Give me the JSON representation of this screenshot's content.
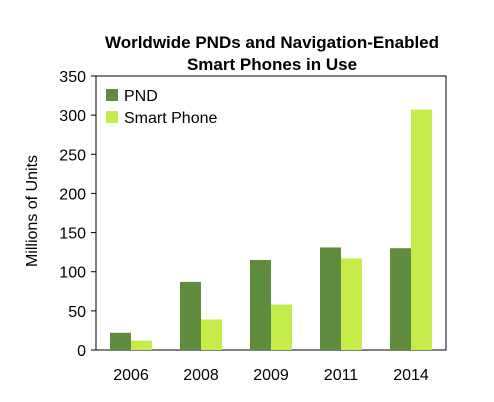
{
  "chart_data": {
    "type": "bar",
    "title_lines": [
      "Worldwide PNDs and Navigation-Enabled",
      "Smart Phones in Use"
    ],
    "xlabel": "",
    "ylabel": "Millions of Units",
    "categories": [
      "2006",
      "2008",
      "2009",
      "2011",
      "2014"
    ],
    "ylim": [
      0,
      350
    ],
    "yticks": [
      "0",
      "50",
      "100",
      "150",
      "200",
      "250",
      "300",
      "350"
    ],
    "grid": false,
    "legend_position": "top-left",
    "series": [
      {
        "name": "PND",
        "color": "#5f8c3d",
        "values": [
          22,
          87,
          115,
          131,
          130
        ]
      },
      {
        "name": "Smart Phone",
        "color": "#c6ec4a",
        "values": [
          12,
          39,
          58,
          117,
          307
        ]
      }
    ]
  }
}
